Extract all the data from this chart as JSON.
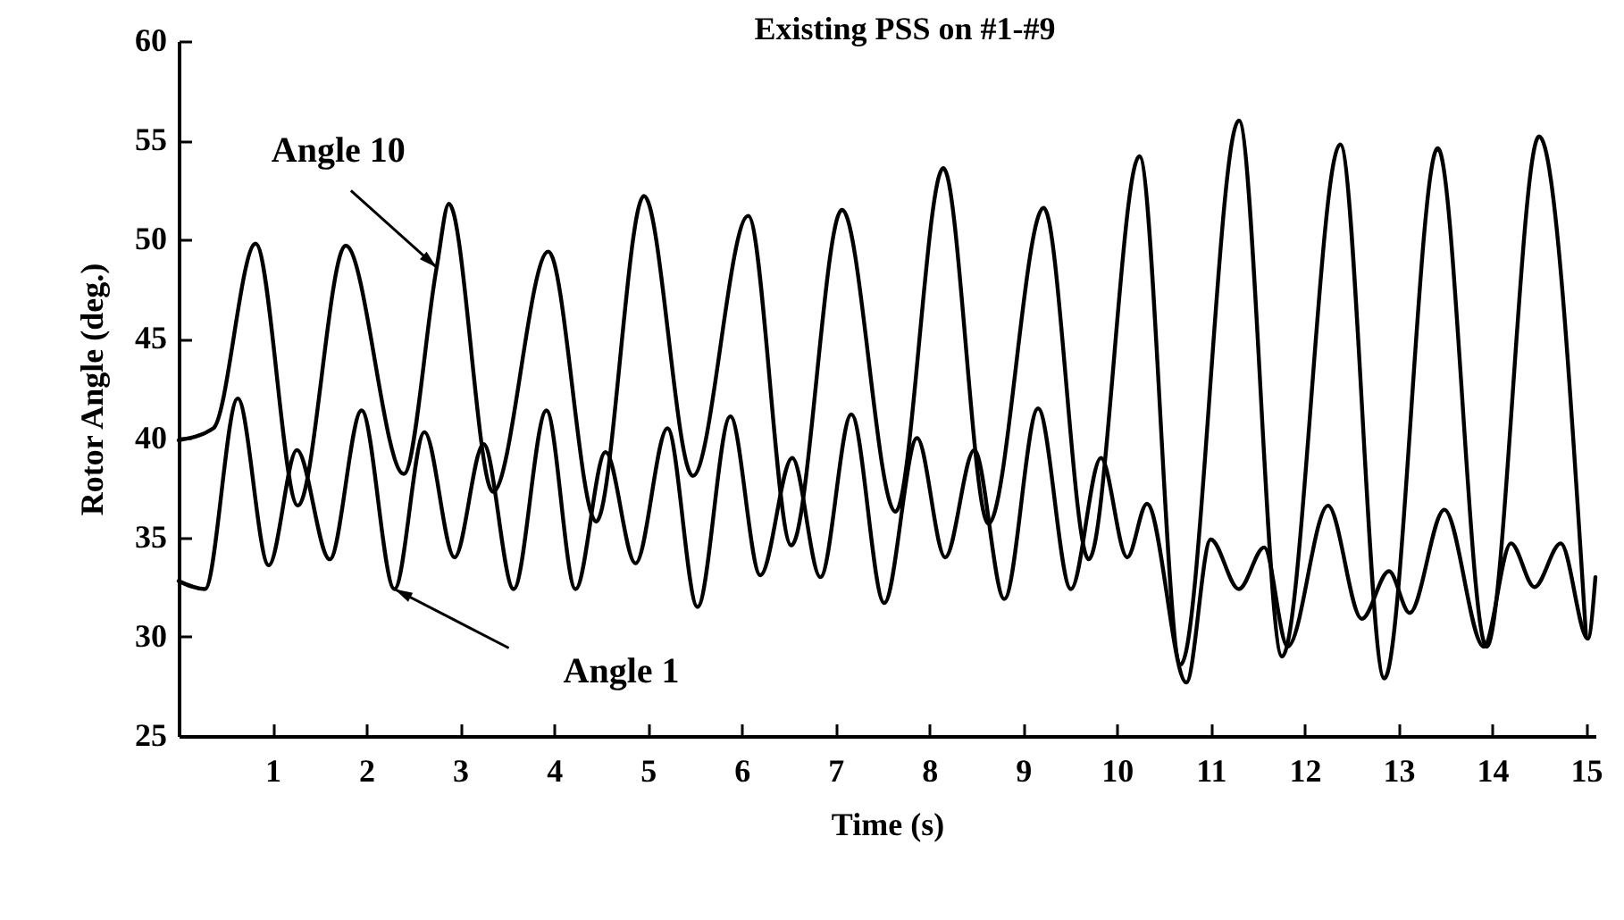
{
  "chart_data": {
    "type": "line",
    "title": "Existing PSS on #1-#9",
    "xlabel": "Time (s)",
    "ylabel": "Rotor Angle (deg.)",
    "xlim": [
      0,
      15.1
    ],
    "xticks": [
      1,
      2,
      3,
      4,
      5,
      6,
      7,
      8,
      9,
      10,
      11,
      12,
      13,
      14,
      15
    ],
    "ylim": [
      25,
      60
    ],
    "yticks": [
      25,
      30,
      35,
      40,
      45,
      50,
      55,
      60
    ],
    "grid": false,
    "legend": false,
    "series": [
      {
        "name": "Angle 10",
        "color": "#000000",
        "x": [
          0,
          0.37,
          0.82,
          1.27,
          1.78,
          2.4,
          2.75,
          2.88,
          3.35,
          3.94,
          4.45,
          4.96,
          5.48,
          6.07,
          6.53,
          7.07,
          7.64,
          8.15,
          8.63,
          9.22,
          9.7,
          10.24,
          10.68,
          11.3,
          11.76,
          12.38,
          12.85,
          13.42,
          13.94,
          14.5,
          15.0
        ],
        "values": [
          39.9,
          40.5,
          49.8,
          36.6,
          49.7,
          38.2,
          48.6,
          51.8,
          37.3,
          49.4,
          35.8,
          52.2,
          38.1,
          51.2,
          34.6,
          51.5,
          36.3,
          53.6,
          35.7,
          51.6,
          33.9,
          54.2,
          28.6,
          56,
          29,
          54.8,
          27.9,
          54.6,
          29.5,
          55.2,
          30
        ]
      },
      {
        "name": "Angle 1",
        "color": "#000000",
        "x": [
          0,
          0.28,
          0.63,
          0.96,
          1.26,
          1.61,
          1.95,
          2.3,
          2.62,
          2.94,
          3.25,
          3.57,
          3.92,
          4.23,
          4.55,
          4.87,
          5.21,
          5.53,
          5.88,
          6.2,
          6.54,
          6.84,
          7.17,
          7.52,
          7.87,
          8.17,
          8.48,
          8.8,
          9.16,
          9.51,
          9.83,
          10.11,
          10.32,
          10.74,
          11.0,
          11.3,
          11.57,
          11.82,
          12.25,
          12.61,
          12.9,
          13.12,
          13.49,
          13.91,
          14.2,
          14.45,
          14.73,
          15.02,
          15.1
        ],
        "values": [
          32.8,
          32.4,
          42,
          33.6,
          39.4,
          33.9,
          41.4,
          32.4,
          40.3,
          34,
          39.7,
          32.4,
          41.4,
          32.4,
          39.3,
          33.7,
          40.5,
          31.5,
          41.1,
          33.1,
          39,
          33,
          41.2,
          31.7,
          40,
          34,
          39.4,
          31.9,
          41.5,
          32.4,
          39,
          34,
          36.7,
          27.7,
          34.9,
          32.4,
          34.5,
          29.5,
          36.6,
          30.9,
          33.3,
          31.2,
          36.4,
          29.5,
          34.7,
          32.5,
          34.7,
          29.9,
          33
        ]
      }
    ]
  }
}
